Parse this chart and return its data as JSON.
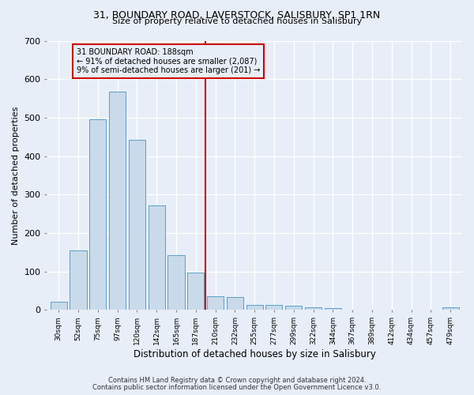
{
  "title_line1": "31, BOUNDARY ROAD, LAVERSTOCK, SALISBURY, SP1 1RN",
  "title_line2": "Size of property relative to detached houses in Salisbury",
  "xlabel": "Distribution of detached houses by size in Salisbury",
  "ylabel": "Number of detached properties",
  "bar_color": "#c9daea",
  "bar_edge_color": "#5a9fc8",
  "annotation_line_color": "#cc0000",
  "annotation_label": "31 BOUNDARY ROAD: 188sqm",
  "annotation_text_line2": "← 91% of detached houses are smaller (2,087)",
  "annotation_text_line3": "9% of semi-detached houses are larger (201) →",
  "categories": [
    "30sqm",
    "52sqm",
    "75sqm",
    "97sqm",
    "120sqm",
    "142sqm",
    "165sqm",
    "187sqm",
    "210sqm",
    "232sqm",
    "255sqm",
    "277sqm",
    "299sqm",
    "322sqm",
    "344sqm",
    "367sqm",
    "389sqm",
    "412sqm",
    "434sqm",
    "457sqm",
    "479sqm"
  ],
  "values": [
    22,
    155,
    495,
    567,
    443,
    272,
    143,
    97,
    35,
    33,
    13,
    13,
    12,
    7,
    6,
    0,
    0,
    0,
    0,
    0,
    7
  ],
  "ylim": [
    0,
    700
  ],
  "yticks": [
    0,
    100,
    200,
    300,
    400,
    500,
    600,
    700
  ],
  "footnote_line1": "Contains HM Land Registry data © Crown copyright and database right 2024.",
  "footnote_line2": "Contains public sector information licensed under the Open Government Licence v3.0.",
  "background_color": "#e8eef8",
  "grid_color": "#ffffff",
  "figsize": [
    6.0,
    5.0
  ],
  "dpi": 100
}
